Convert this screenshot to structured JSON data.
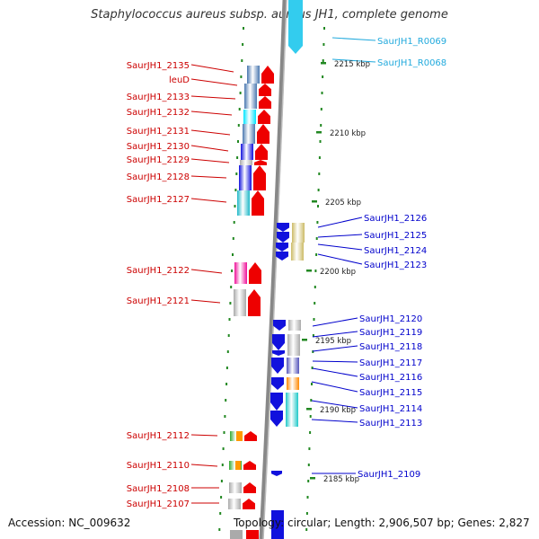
{
  "title": "Staphylococcus aureus subsp. aureus JH1, complete genome",
  "footer": {
    "accession": "Accession: NC_009632",
    "topology": "Topology: circular; Length: 2,906,507 bp; Genes: 2,827"
  },
  "scale_labels": [
    "2215 kbp",
    "2210 kbp",
    "2205 kbp",
    "2200 kbp",
    "2195 kbp",
    "2190 kbp",
    "2185 kbp"
  ],
  "left_genes": [
    "SaurJH1_2135",
    "leuD",
    "SaurJH1_2133",
    "SaurJH1_2132",
    "SaurJH1_2131",
    "SaurJH1_2130",
    "SaurJH1_2129",
    "SaurJH1_2128",
    "SaurJH1_2127",
    "SaurJH1_2122",
    "SaurJH1_2121",
    "SaurJH1_2112",
    "SaurJH1_2110",
    "SaurJH1_2108",
    "SaurJH1_2107"
  ],
  "right_genes": [
    "SaurJH1_2126",
    "SaurJH1_2125",
    "SaurJH1_2124",
    "SaurJH1_2123",
    "SaurJH1_2120",
    "SaurJH1_2119",
    "SaurJH1_2118",
    "SaurJH1_2117",
    "SaurJH1_2116",
    "SaurJH1_2115",
    "SaurJH1_2114",
    "SaurJH1_2113",
    "SaurJH1_2109"
  ],
  "rna_genes": [
    "SaurJH1_R0069",
    "SaurJH1_R0068"
  ],
  "colors": {
    "forward": "#ee0000",
    "reverse": "#1111dd",
    "rna": "#33ccee",
    "label_left": "#cc0000",
    "label_right": "#0000cc",
    "label_rna": "#22aadd",
    "tick": "#228822",
    "backbone": "#888888"
  }
}
